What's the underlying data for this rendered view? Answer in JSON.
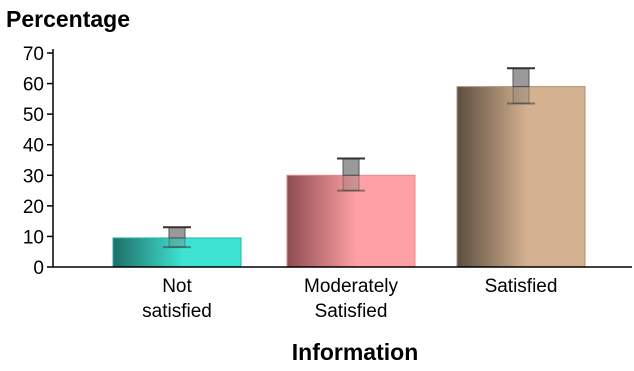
{
  "chart_data": {
    "type": "bar",
    "ylabel": "Percentage",
    "xlabel": "Information",
    "ylim": [
      0,
      70
    ],
    "yticks": [
      0,
      10,
      20,
      30,
      40,
      50,
      60,
      70
    ],
    "categories": [
      [
        "Not",
        "satisfied"
      ],
      [
        "Moderately",
        "Satisfied"
      ],
      [
        "Satisfied"
      ]
    ],
    "values": [
      9.5,
      30,
      59
    ],
    "error_bars": [
      {
        "low": 6.5,
        "high": 13
      },
      {
        "low": 25,
        "high": 35.5
      },
      {
        "low": 53.5,
        "high": 65
      }
    ],
    "bar_colors": [
      {
        "dark": "#1e6f67",
        "light": "#3fe3d2",
        "edge": "#26b3a5"
      },
      {
        "dark": "#8e4c52",
        "light": "#ffa1a4",
        "edge": "#e38a8e"
      },
      {
        "dark": "#5b4e3f",
        "light": "#d4b190",
        "edge": "#ad9173"
      }
    ],
    "grid": false,
    "legend": "none"
  }
}
